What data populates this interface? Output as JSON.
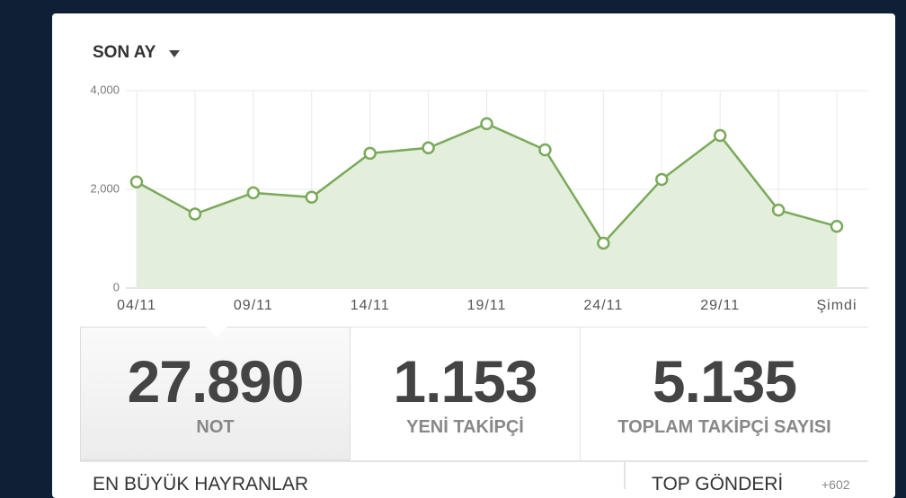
{
  "period_selector": "SON AY",
  "chart_data": {
    "type": "line",
    "categories": [
      "04/11",
      null,
      "09/11",
      null,
      "14/11",
      null,
      "19/11",
      null,
      "24/11",
      null,
      "29/11",
      null,
      "Şimdi"
    ],
    "values": [
      2150,
      1500,
      1930,
      1840,
      2730,
      2840,
      3330,
      2800,
      910,
      2200,
      3090,
      1580,
      1250
    ],
    "color": "#7aaa5a",
    "fill": "#e4eedc",
    "ylim": [
      0,
      4000
    ],
    "yticks": [
      0,
      {
        "value": 2000,
        "label": "2,000"
      },
      {
        "value": 4000,
        "label": "4,000"
      }
    ],
    "grid": true
  },
  "stats": [
    {
      "value": "27.890",
      "label": "NOT"
    },
    {
      "value": "1.153",
      "label": "YENİ TAKİPÇİ"
    },
    {
      "value": "5.135",
      "label": "TOPLAM TAKİPÇİ SAYISI"
    }
  ],
  "sections": {
    "fans": "EN BÜYÜK HAYRANLAR",
    "top_post": "TOP GÖNDERİ",
    "top_post_count": "+602"
  }
}
